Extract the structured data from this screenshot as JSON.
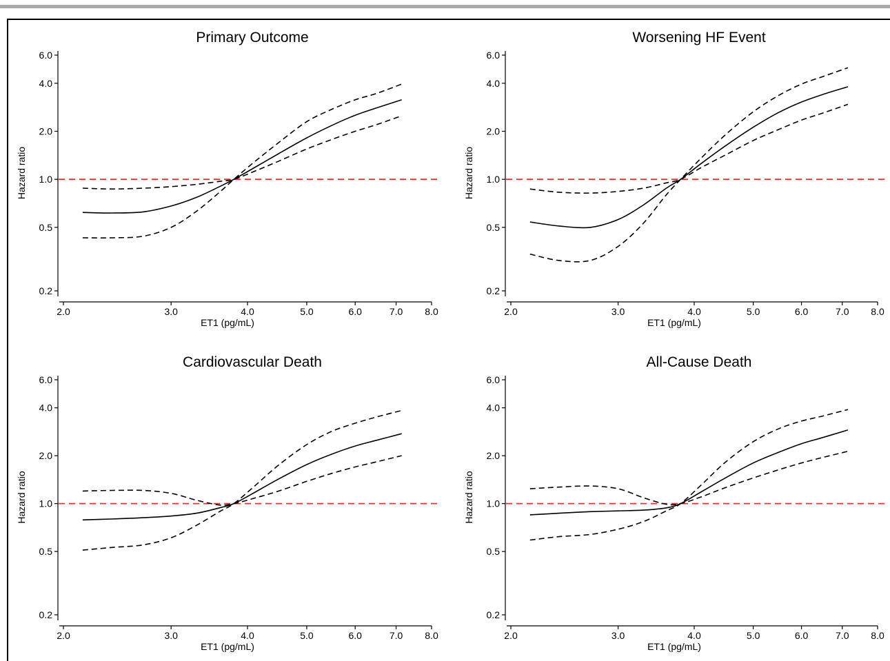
{
  "colors": {
    "reference_line": "#e8322c",
    "curve": "#000000",
    "frame_bar": "#a9a9a9"
  },
  "chart_data": [
    {
      "type": "line",
      "title": "Primary Outcome",
      "xlabel": "ET1 (pg/mL)",
      "ylabel": "Hazard ratio",
      "xscale": "log",
      "yscale": "log",
      "xticks": [
        "2.0",
        "3.0",
        "4.0",
        "5.0",
        "6.0",
        "7.0",
        "8.0"
      ],
      "yticks": [
        "0.2",
        "0.5",
        "1.0",
        "2.0",
        "4.0",
        "6.0"
      ],
      "xlim": [
        2.0,
        8.0
      ],
      "ylim": [
        0.2,
        6.0
      ],
      "reference_y": 1.0,
      "grid": false,
      "x": [
        2.15,
        2.4,
        2.7,
        3.0,
        3.3,
        3.6,
        3.8,
        4.1,
        4.5,
        5.0,
        5.5,
        6.0,
        6.5,
        7.15
      ],
      "series": [
        {
          "style": "solid",
          "values": [
            0.62,
            0.615,
            0.625,
            0.68,
            0.77,
            0.9,
            1.0,
            1.18,
            1.45,
            1.82,
            2.18,
            2.52,
            2.8,
            3.15
          ]
        },
        {
          "style": "dashed",
          "values": [
            0.88,
            0.87,
            0.88,
            0.9,
            0.93,
            0.97,
            1.0,
            1.12,
            1.3,
            1.55,
            1.78,
            2.0,
            2.2,
            2.5
          ]
        },
        {
          "style": "dashed",
          "values": [
            0.43,
            0.43,
            0.44,
            0.5,
            0.63,
            0.83,
            1.0,
            1.28,
            1.7,
            2.3,
            2.75,
            3.15,
            3.45,
            3.95
          ]
        }
      ]
    },
    {
      "type": "line",
      "title": "Worsening HF Event",
      "xlabel": "ET1 (pg/mL)",
      "ylabel": "Hazard ratio",
      "xscale": "log",
      "yscale": "log",
      "xticks": [
        "2.0",
        "3.0",
        "4.0",
        "5.0",
        "6.0",
        "7.0",
        "8.0"
      ],
      "yticks": [
        "0.2",
        "0.5",
        "1.0",
        "2.0",
        "4.0",
        "6.0"
      ],
      "xlim": [
        2.0,
        8.0
      ],
      "ylim": [
        0.2,
        6.0
      ],
      "reference_y": 1.0,
      "grid": false,
      "x": [
        2.15,
        2.4,
        2.7,
        3.0,
        3.3,
        3.6,
        3.8,
        4.1,
        4.5,
        5.0,
        5.5,
        6.0,
        6.5,
        7.15
      ],
      "series": [
        {
          "style": "solid",
          "values": [
            0.54,
            0.51,
            0.5,
            0.56,
            0.69,
            0.88,
            1.0,
            1.25,
            1.62,
            2.12,
            2.62,
            3.05,
            3.4,
            3.8
          ]
        },
        {
          "style": "dashed",
          "values": [
            0.87,
            0.83,
            0.82,
            0.84,
            0.88,
            0.95,
            1.0,
            1.18,
            1.42,
            1.75,
            2.05,
            2.35,
            2.6,
            2.95
          ]
        },
        {
          "style": "dashed",
          "values": [
            0.34,
            0.31,
            0.31,
            0.38,
            0.53,
            0.8,
            1.0,
            1.35,
            1.9,
            2.65,
            3.35,
            3.95,
            4.4,
            5.0
          ]
        }
      ]
    },
    {
      "type": "line",
      "title": "Cardiovascular Death",
      "xlabel": "ET1 (pg/mL)",
      "ylabel": "Hazard ratio",
      "xscale": "log",
      "yscale": "log",
      "xticks": [
        "2.0",
        "3.0",
        "4.0",
        "5.0",
        "6.0",
        "7.0",
        "8.0"
      ],
      "yticks": [
        "0.2",
        "0.5",
        "1.0",
        "2.0",
        "4.0",
        "6.0"
      ],
      "xlim": [
        2.0,
        8.0
      ],
      "ylim": [
        0.2,
        6.0
      ],
      "reference_y": 1.0,
      "grid": false,
      "x": [
        2.15,
        2.4,
        2.7,
        3.0,
        3.3,
        3.6,
        3.8,
        4.1,
        4.5,
        5.0,
        5.5,
        6.0,
        6.5,
        7.15
      ],
      "series": [
        {
          "style": "solid",
          "values": [
            0.79,
            0.8,
            0.815,
            0.835,
            0.87,
            0.94,
            1.0,
            1.17,
            1.43,
            1.76,
            2.05,
            2.3,
            2.5,
            2.75
          ]
        },
        {
          "style": "dashed",
          "values": [
            1.2,
            1.21,
            1.21,
            1.16,
            1.05,
            0.98,
            1.0,
            1.08,
            1.2,
            1.38,
            1.55,
            1.7,
            1.83,
            2.0
          ]
        },
        {
          "style": "dashed",
          "values": [
            0.51,
            0.53,
            0.55,
            0.61,
            0.73,
            0.89,
            1.0,
            1.28,
            1.75,
            2.35,
            2.85,
            3.2,
            3.5,
            3.85
          ]
        }
      ]
    },
    {
      "type": "line",
      "title": "All-Cause Death",
      "xlabel": "ET1 (pg/mL)",
      "ylabel": "Hazard ratio",
      "xscale": "log",
      "yscale": "log",
      "xticks": [
        "2.0",
        "3.0",
        "4.0",
        "5.0",
        "6.0",
        "7.0",
        "8.0"
      ],
      "yticks": [
        "0.2",
        "0.5",
        "1.0",
        "2.0",
        "4.0",
        "6.0"
      ],
      "xlim": [
        2.0,
        8.0
      ],
      "ylim": [
        0.2,
        6.0
      ],
      "reference_y": 1.0,
      "grid": false,
      "x": [
        2.15,
        2.4,
        2.7,
        3.0,
        3.3,
        3.6,
        3.8,
        4.1,
        4.5,
        5.0,
        5.5,
        6.0,
        6.5,
        7.15
      ],
      "series": [
        {
          "style": "solid",
          "values": [
            0.85,
            0.87,
            0.89,
            0.9,
            0.91,
            0.94,
            1.0,
            1.18,
            1.45,
            1.8,
            2.1,
            2.38,
            2.6,
            2.9
          ]
        },
        {
          "style": "dashed",
          "values": [
            1.24,
            1.27,
            1.29,
            1.24,
            1.09,
            0.99,
            1.0,
            1.1,
            1.26,
            1.45,
            1.63,
            1.8,
            1.95,
            2.13
          ]
        },
        {
          "style": "dashed",
          "values": [
            0.59,
            0.62,
            0.64,
            0.69,
            0.77,
            0.9,
            1.0,
            1.3,
            1.82,
            2.45,
            2.95,
            3.3,
            3.55,
            3.9
          ]
        }
      ]
    }
  ]
}
